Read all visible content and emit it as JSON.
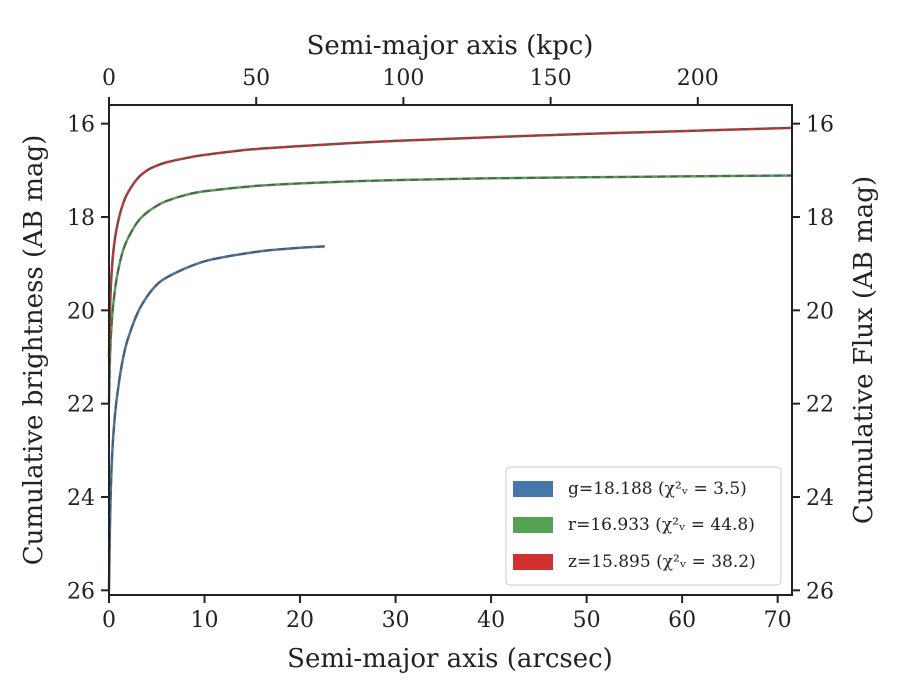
{
  "chart_data": {
    "type": "line",
    "xlabel": "Semi-major axis (arcsec)",
    "ylabel": "Cumulative brightness (AB mag)",
    "top_xlabel": "Semi-major axis (kpc)",
    "right_ylabel": "Cumulative Flux (AB mag)",
    "xlim": [
      0,
      71.5
    ],
    "ylim": [
      26.1,
      15.6
    ],
    "y_inverted": true,
    "xticks": [
      "0",
      "10",
      "20",
      "30",
      "40",
      "50",
      "60",
      "70"
    ],
    "yticks": [
      "16",
      "18",
      "20",
      "22",
      "24",
      "26"
    ],
    "top_xlim": [
      0,
      232
    ],
    "top_xticks": [
      "0",
      "50",
      "100",
      "150",
      "200"
    ],
    "grid": false,
    "legend_position": "lower right",
    "series": [
      {
        "name": "g=18.188 (χ²ᵥ = 3.5)",
        "color": "#4477aa",
        "model_style": "dashed",
        "model_color": "#555555",
        "x": [
          0,
          0.1,
          0.3,
          0.6,
          1,
          1.5,
          2,
          3,
          4,
          5,
          6,
          8,
          10,
          12,
          14,
          16,
          18,
          20,
          22.6
        ],
        "y": [
          26.0,
          24.6,
          23.2,
          22.3,
          21.6,
          21.0,
          20.6,
          20.05,
          19.7,
          19.45,
          19.3,
          19.1,
          18.95,
          18.86,
          18.79,
          18.73,
          18.69,
          18.66,
          18.63
        ]
      },
      {
        "name": "r=16.933 (χ²ᵥ = 44.8)",
        "color": "#55a255",
        "model_style": "dashed",
        "model_color": "#555555",
        "x": [
          0,
          0.1,
          0.3,
          0.6,
          1,
          1.5,
          2,
          3,
          4,
          5,
          6,
          8,
          10,
          15,
          20,
          25,
          30,
          40,
          50,
          60,
          71.5
        ],
        "y": [
          22.0,
          21.0,
          20.2,
          19.6,
          19.1,
          18.7,
          18.45,
          18.1,
          17.9,
          17.76,
          17.66,
          17.53,
          17.45,
          17.34,
          17.28,
          17.24,
          17.21,
          17.17,
          17.15,
          17.13,
          17.11
        ]
      },
      {
        "name": "z=15.895 (χ²ᵥ = 38.2)",
        "color": "#d03030",
        "model_style": "dashed",
        "model_color": "#555555",
        "x": [
          0,
          0.1,
          0.3,
          0.6,
          1,
          1.5,
          2,
          3,
          4,
          5,
          6,
          8,
          10,
          15,
          20,
          25,
          30,
          40,
          50,
          60,
          71.5
        ],
        "y": [
          21.0,
          20.0,
          19.1,
          18.5,
          18.05,
          17.7,
          17.47,
          17.17,
          17.0,
          16.9,
          16.83,
          16.74,
          16.67,
          16.55,
          16.48,
          16.42,
          16.37,
          16.29,
          16.22,
          16.16,
          16.09
        ]
      }
    ]
  }
}
